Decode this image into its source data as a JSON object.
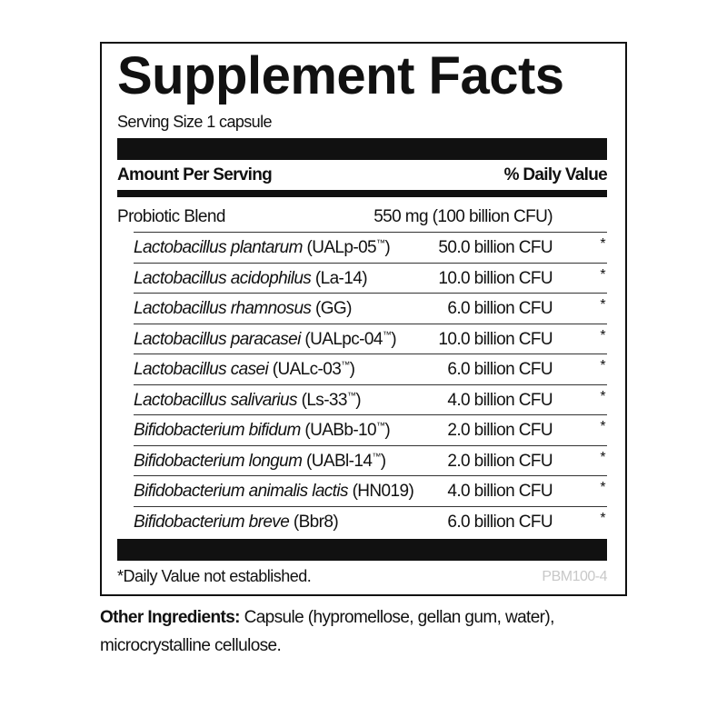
{
  "title": "Supplement Facts",
  "serving_size": "Serving Size 1 capsule",
  "header": {
    "amount": "Amount Per Serving",
    "dv": "% Daily Value"
  },
  "blend": {
    "name": "Probiotic Blend",
    "amount": "550 mg (100 billion CFU)"
  },
  "strains": [
    {
      "species": "Lactobacillus plantarum",
      "strain": " (UALp-05",
      "tm": "™",
      "close": ")",
      "amount": "50.0 billion CFU",
      "dv": "*"
    },
    {
      "species": "Lactobacillus acidophilus",
      "strain": " (La-14",
      "tm": "",
      "close": ")",
      "amount": "10.0 billion CFU",
      "dv": "*"
    },
    {
      "species": "Lactobacillus rhamnosus",
      "strain": " (GG",
      "tm": "",
      "close": ")",
      "amount": "6.0 billion CFU",
      "dv": "*"
    },
    {
      "species": "Lactobacillus paracasei",
      "strain": " (UALpc-04",
      "tm": "™",
      "close": ")",
      "amount": "10.0 billion CFU",
      "dv": "*"
    },
    {
      "species": "Lactobacillus casei",
      "strain": " (UALc-03",
      "tm": "™",
      "close": ")",
      "amount": "6.0 billion CFU",
      "dv": "*"
    },
    {
      "species": "Lactobacillus salivarius",
      "strain": " (Ls-33",
      "tm": "™",
      "close": ")",
      "amount": "4.0 billion CFU",
      "dv": "*"
    },
    {
      "species": "Bifidobacterium bifidum",
      "strain": " (UABb-10",
      "tm": "™",
      "close": ")",
      "amount": "2.0 billion CFU",
      "dv": "*"
    },
    {
      "species": "Bifidobacterium longum",
      "strain": " (UABl-14",
      "tm": "™",
      "close": ")",
      "amount": "2.0 billion CFU",
      "dv": "*"
    },
    {
      "species": "Bifidobacterium animalis lactis",
      "strain": " (HN019",
      "tm": "",
      "close": ")",
      "amount": "4.0 billion CFU",
      "dv": "*"
    },
    {
      "species": "Bifidobacterium breve",
      "strain": " (Bbr8",
      "tm": "",
      "close": ")",
      "amount": "6.0 billion CFU",
      "dv": "*"
    }
  ],
  "footnote": "*Daily Value not established.",
  "code": "PBM100-4",
  "other_ingredients": {
    "label": "Other Ingredients:",
    "text": " Capsule (hypromellose, gellan gum, water), microcrystalline cellulose."
  }
}
